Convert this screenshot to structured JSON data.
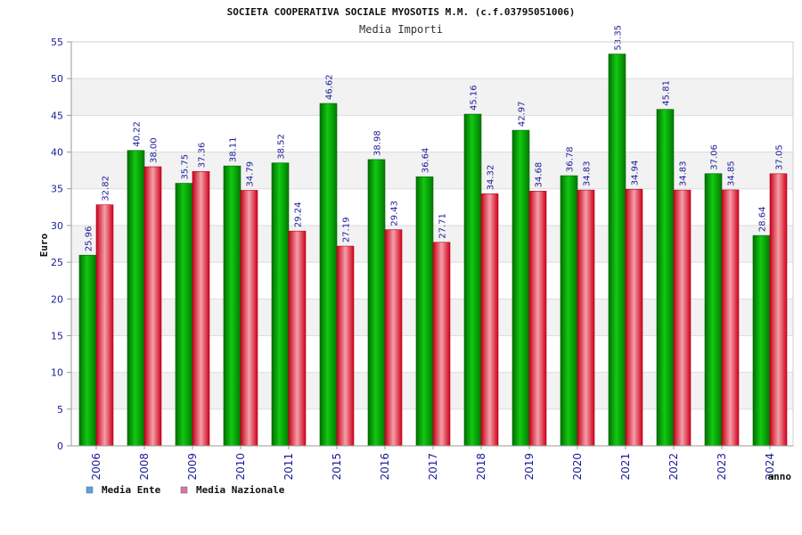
{
  "chart_data": {
    "type": "bar",
    "title": "SOCIETA COOPERATIVA SOCIALE MYOSOTIS M.M. (c.f.03795051006)",
    "subtitle": "Media Importi",
    "xlabel": "anno",
    "ylabel": "Euro",
    "ylim": [
      0,
      55
    ],
    "yticks": [
      0,
      5,
      10,
      15,
      20,
      25,
      30,
      35,
      40,
      45,
      50,
      55
    ],
    "grid": true,
    "legend_position": "bottom-left",
    "categories": [
      "2006",
      "2008",
      "2009",
      "2010",
      "2011",
      "2015",
      "2016",
      "2017",
      "2018",
      "2019",
      "2020",
      "2021",
      "2022",
      "2023",
      "2024"
    ],
    "series": [
      {
        "name": "Media Ente",
        "color": "#00a800",
        "legend_color": "#5a9ee8",
        "values": [
          25.96,
          40.22,
          35.75,
          38.11,
          38.52,
          46.62,
          38.98,
          36.64,
          45.16,
          42.97,
          36.78,
          53.35,
          45.81,
          37.06,
          28.64
        ],
        "labels": [
          "25.96",
          "40.22",
          "35.75",
          "38.11",
          "38.52",
          "46.62",
          "38.98",
          "36.64",
          "45.16",
          "42.97",
          "36.78",
          "53.35",
          "45.81",
          "37.06",
          "28.64"
        ]
      },
      {
        "name": "Media Nazionale",
        "color": "#e8102a",
        "legend_color": "#e070a8",
        "values": [
          32.82,
          38.0,
          37.36,
          34.79,
          29.24,
          27.19,
          29.43,
          27.71,
          34.32,
          34.68,
          34.83,
          34.94,
          34.83,
          34.85,
          37.05
        ],
        "labels": [
          "32.82",
          "38.00",
          "37.36",
          "34.79",
          "29.24",
          "27.19",
          "29.43",
          "27.71",
          "34.32",
          "34.68",
          "34.83",
          "34.94",
          "34.83",
          "34.85",
          "37.05"
        ]
      }
    ]
  }
}
